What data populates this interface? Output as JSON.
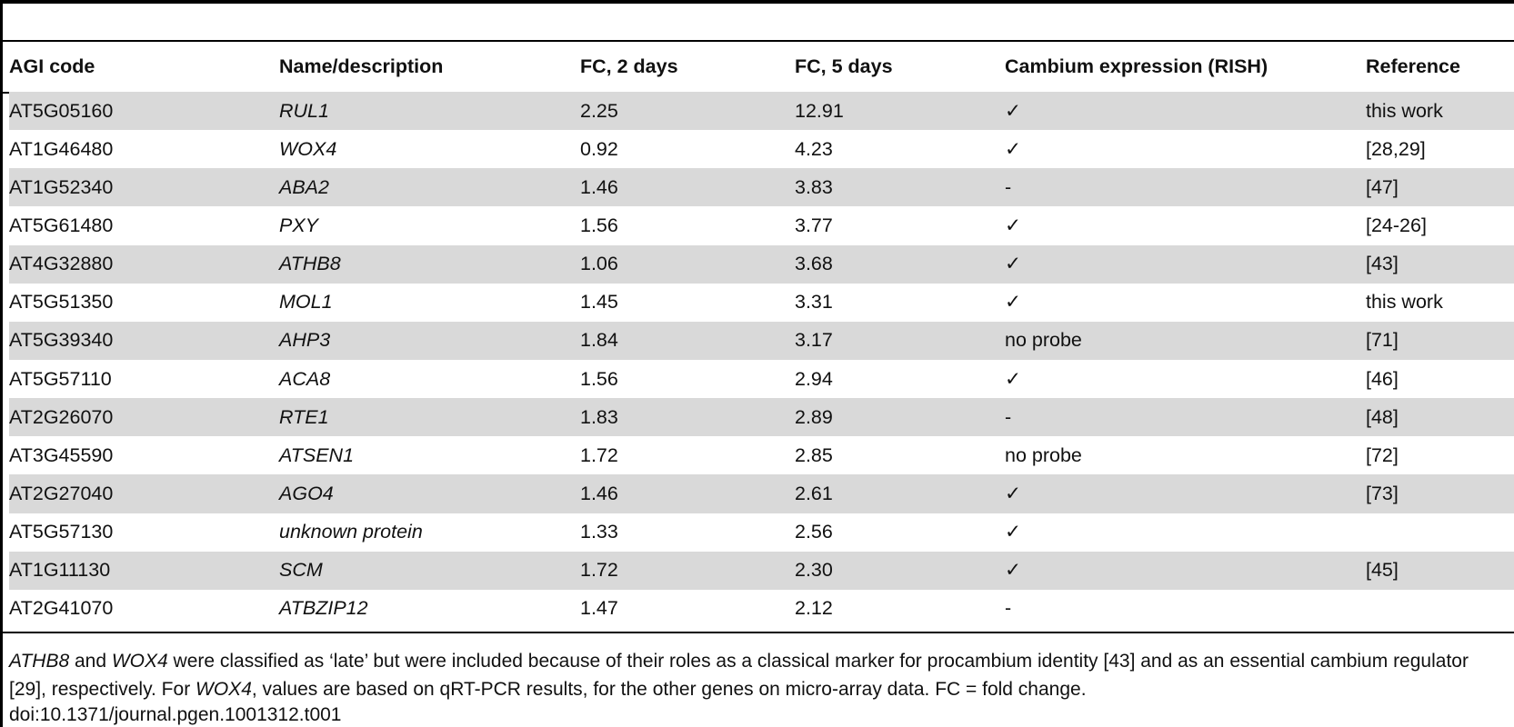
{
  "table": {
    "headers": [
      "AGI code",
      "Name/description",
      "FC, 2 days",
      "FC, 5 days",
      "Cambium expression (RISH)",
      "Reference"
    ],
    "rows": [
      [
        "AT5G05160",
        "RUL1",
        "2.25",
        "12.91",
        "✓",
        "this work"
      ],
      [
        "AT1G46480",
        "WOX4",
        "0.92",
        "4.23",
        "✓",
        "[28,29]"
      ],
      [
        "AT1G52340",
        "ABA2",
        "1.46",
        "3.83",
        "-",
        "[47]"
      ],
      [
        "AT5G61480",
        "PXY",
        "1.56",
        "3.77",
        "✓",
        "[24-26]"
      ],
      [
        "AT4G32880",
        "ATHB8",
        "1.06",
        "3.68",
        "✓",
        "[43]"
      ],
      [
        "AT5G51350",
        "MOL1",
        "1.45",
        "3.31",
        "✓",
        "this work"
      ],
      [
        "AT5G39340",
        "AHP3",
        "1.84",
        "3.17",
        "no probe",
        "[71]"
      ],
      [
        "AT5G57110",
        "ACA8",
        "1.56",
        "2.94",
        "✓",
        "[46]"
      ],
      [
        "AT2G26070",
        "RTE1",
        "1.83",
        "2.89",
        "-",
        "[48]"
      ],
      [
        "AT3G45590",
        "ATSEN1",
        "1.72",
        "2.85",
        "no probe",
        "[72]"
      ],
      [
        "AT2G27040",
        "AGO4",
        "1.46",
        "2.61",
        "✓",
        "[73]"
      ],
      [
        "AT5G57130",
        "unknown protein",
        "1.33",
        "2.56",
        "✓",
        ""
      ],
      [
        "AT1G11130",
        "SCM",
        "1.72",
        "2.30",
        "✓",
        "[45]"
      ],
      [
        "AT2G41070",
        "ATBZIP12",
        "1.47",
        "2.12",
        "-",
        ""
      ]
    ]
  },
  "footnote": {
    "gene1": "ATHB8",
    "and": " and ",
    "gene2": "WOX4",
    "part1": " were classified as ‘late’ but were included because of their roles as a classical marker for procambium identity [43] and as an essential cambium regulator [29], respectively. For ",
    "gene3": "WOX4",
    "part2": ", values are based on qRT-PCR results, for the other genes on micro-array data. FC = fold change."
  },
  "doi": "doi:10.1371/journal.pgen.1001312.t001"
}
